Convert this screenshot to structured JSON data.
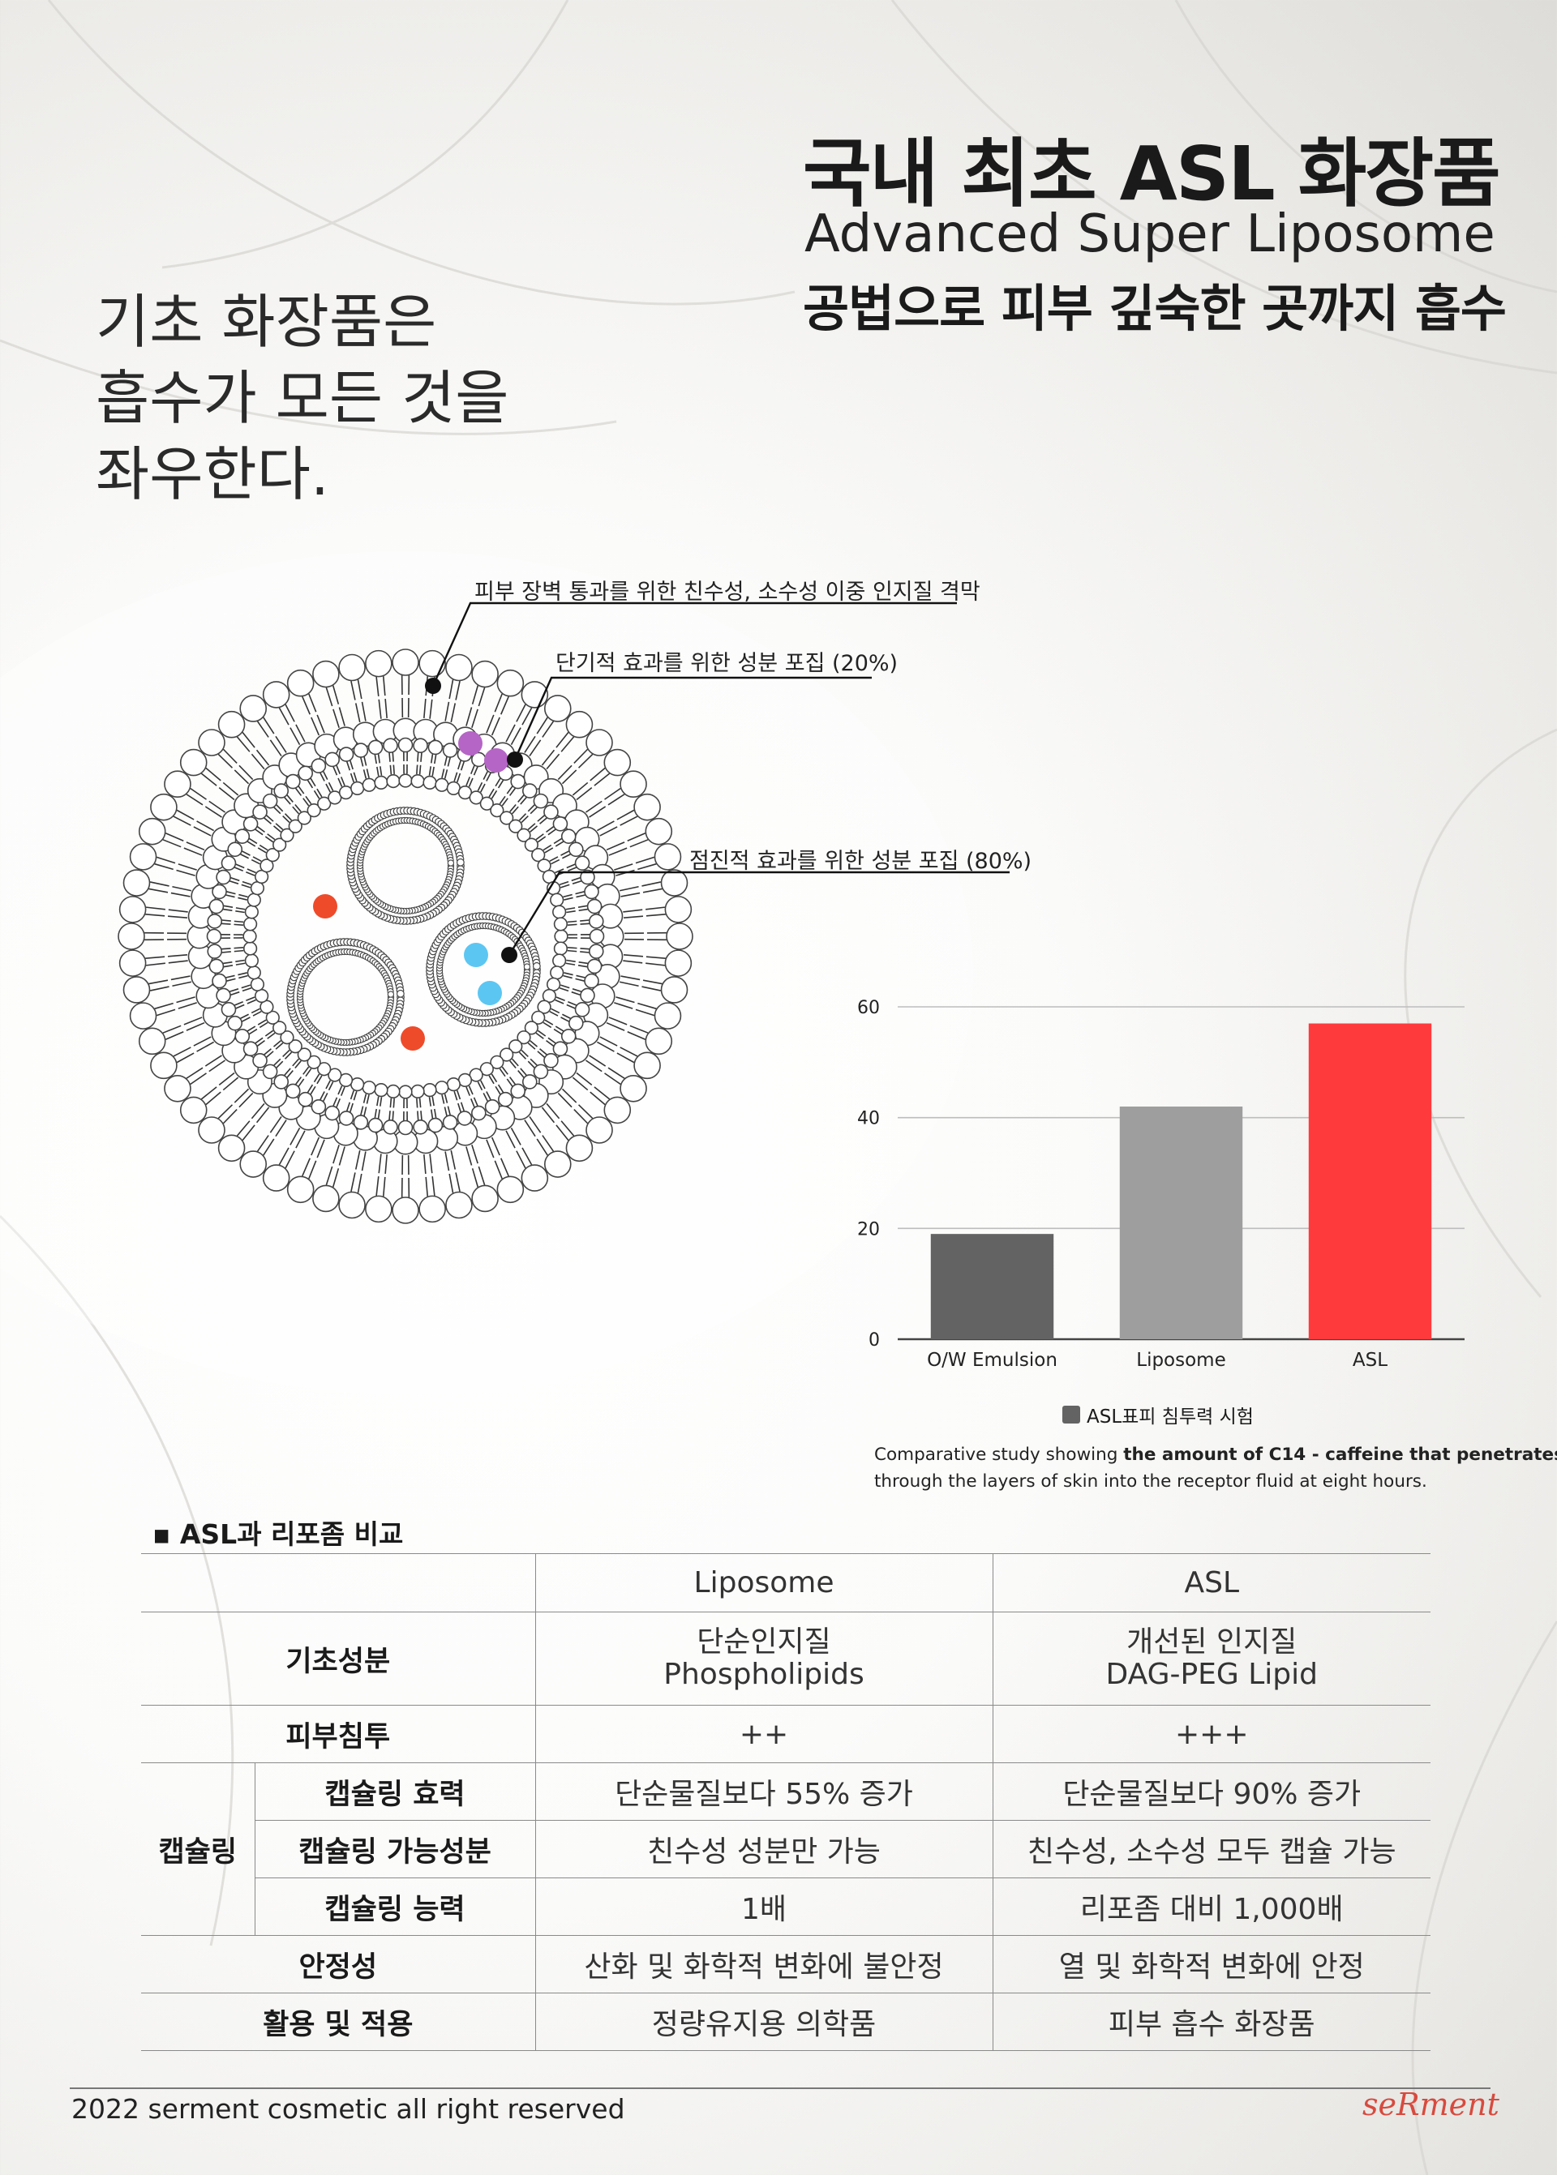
{
  "header": {
    "title": "국내 최초 ASL 화장품",
    "subtitle": "Advanced Super Liposome",
    "subtitle2": "공법으로 피부 깊숙한 곳까지 흡수"
  },
  "lead": {
    "line1": "기초 화장품은",
    "line2": "흡수가 모든 것을",
    "line3": "좌우한다."
  },
  "diagram": {
    "callout1": "피부 장벽 통과를 위한 친수성, 소수성 이중 인지질 격막",
    "callout2": "단기적 효과를 위한 성분 포집 (20%)",
    "callout3": "점진적 효과를 위한 성분 포집 (80%)",
    "colors": {
      "purple": "#b565c6",
      "red": "#ee4b2b",
      "blue": "#5cc6f2"
    }
  },
  "chart_data": {
    "type": "bar",
    "categories": [
      "O/W Emulsion",
      "Liposome",
      "ASL"
    ],
    "series": [
      {
        "name": "ASL표피 침투력 시험",
        "values": [
          19,
          42,
          57
        ]
      }
    ],
    "colors": [
      "#636363",
      "#9e9e9e",
      "#ff3a3d"
    ],
    "ylim": [
      0,
      60
    ],
    "yticks": [
      0,
      20,
      40,
      60
    ],
    "grid": true,
    "legend": "bottom-center",
    "note_pre": "Comparative study showing ",
    "note_bold": "the amount of C14 - caffeine that penetrates",
    "note_line2": "through the layers of skin into the receptor fluid at eight hours."
  },
  "comparison": {
    "section_title": "▪ ASL과 리포좀 비교",
    "columns": [
      "Liposome",
      "ASL"
    ],
    "rows": {
      "basic": {
        "label": "기초성분",
        "liposome": [
          "단순인지질",
          "Phospholipids"
        ],
        "asl": [
          "개선된 인지질",
          "DAG-PEG Lipid"
        ]
      },
      "penetration": {
        "label": "피부침투",
        "liposome": "++",
        "asl": "+++"
      },
      "capsule_group": "캡슐링",
      "capsule_eff": {
        "label": "캡슐링 효력",
        "liposome": "단순물질보다 55% 증가",
        "asl": "단순물질보다 90% 증가"
      },
      "capsule_ing": {
        "label": "캡슐링 가능성분",
        "liposome": "친수성 성분만 가능",
        "asl": "친수성, 소수성 모두 캡슐 가능"
      },
      "capsule_cap": {
        "label": "캡슐링 능력",
        "liposome": "1배",
        "asl": "리포좀 대비 1,000배"
      },
      "stability": {
        "label": "안정성",
        "liposome": "산화 및 화학적 변화에 불안정",
        "asl": "열 및 화학적 변화에 안정"
      },
      "usage": {
        "label": "활용 및 적용",
        "liposome": "정량유지용 의학품",
        "asl": "피부 흡수 화장품"
      }
    }
  },
  "footer": {
    "copyright": "2022 serment cosmetic  all right reserved",
    "logo": "seRment"
  }
}
